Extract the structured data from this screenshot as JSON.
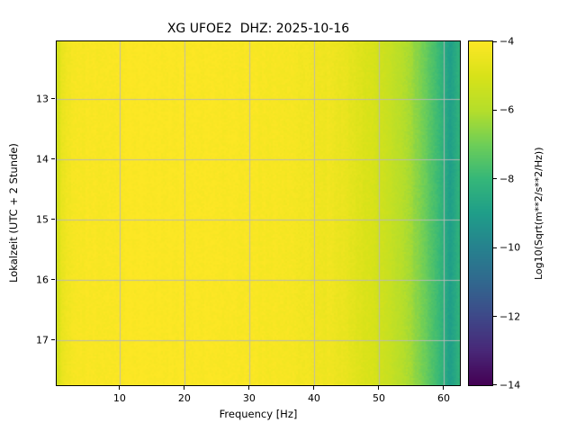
{
  "chart_data": {
    "type": "heatmap",
    "title": "XG UFOE2  DHZ: 2025-10-16",
    "xlabel": "Frequency [Hz]",
    "ylabel": "Lokalzeit (UTC + 2 Stunde)",
    "colorbar_label": "Log10(Sqrt(m**2/s**2/Hz))",
    "xlim": [
      0.3,
      62.5
    ],
    "ylim": [
      12.05,
      17.75
    ],
    "y_axis_inverted": true,
    "value_range": [
      -14,
      -4
    ],
    "x_tick_values": [
      10,
      20,
      30,
      40,
      50,
      60
    ],
    "x_tick_labels": [
      "10",
      "20",
      "30",
      "40",
      "50",
      "60"
    ],
    "y_tick_values": [
      13,
      14,
      15,
      16,
      17
    ],
    "y_tick_labels": [
      "13",
      "14",
      "15",
      "16",
      "17"
    ],
    "colorbar_tick_values": [
      -4,
      -6,
      -8,
      -10,
      -12,
      -14
    ],
    "colorbar_tick_labels": [
      "−4",
      "−6",
      "−8",
      "−10",
      "−12",
      "−14"
    ],
    "grid": {
      "on": true,
      "color": "#b8b8b8"
    },
    "colormap": "viridis",
    "colormap_stops": [
      [
        0.0,
        "#440154"
      ],
      [
        0.1,
        "#482878"
      ],
      [
        0.2,
        "#3e4989"
      ],
      [
        0.3,
        "#31688e"
      ],
      [
        0.4,
        "#26828e"
      ],
      [
        0.5,
        "#1f9e89"
      ],
      [
        0.6,
        "#35b779"
      ],
      [
        0.7,
        "#6ece58"
      ],
      [
        0.8,
        "#b5de2b"
      ],
      [
        0.9,
        "#d8e219"
      ],
      [
        1.0,
        "#fde725"
      ]
    ],
    "frequency_profile": {
      "comment": "Mean Log10(Sqrt(PSD)) versus frequency; nearly constant over time",
      "x": [
        0.3,
        1.0,
        2.0,
        4,
        8,
        12,
        16,
        20,
        24,
        28,
        32,
        36,
        40,
        43,
        45,
        47,
        49,
        51,
        53,
        55,
        57,
        59,
        60.0,
        61.0,
        62.0,
        62.5
      ],
      "value": [
        -5.3,
        -4.6,
        -4.3,
        -4.15,
        -4.1,
        -4.05,
        -4.05,
        -4.05,
        -4.1,
        -4.1,
        -4.15,
        -4.2,
        -4.3,
        -4.4,
        -4.55,
        -4.8,
        -5.05,
        -5.4,
        -5.8,
        -6.3,
        -7.0,
        -7.8,
        -8.3,
        -9.0,
        -8.4,
        -8.2
      ]
    },
    "noise_amplitude": 0.22
  }
}
